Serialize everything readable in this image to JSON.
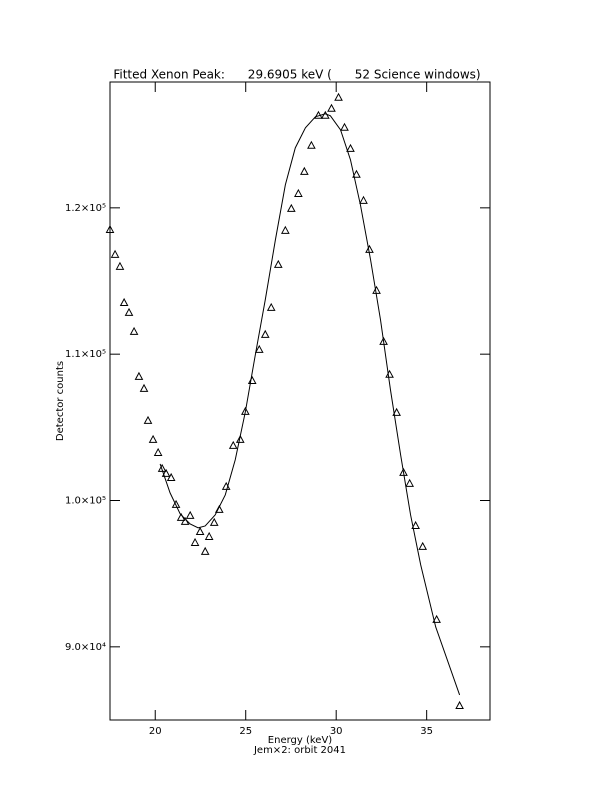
{
  "chart_data": {
    "type": "scatter",
    "title": "Fitted Xenon Peak:      29.6905 keV (      52 Science windows)",
    "x_label": "Energy (keV)",
    "subtitle": "Jem×2: orbit 2041",
    "y_label": "Detector counts",
    "xlim": [
      17.5,
      38.5
    ],
    "ylim": [
      85000,
      128600
    ],
    "xticks": [
      20,
      25,
      30,
      35
    ],
    "yticks": [
      {
        "value": 90000,
        "label": "9.0×10⁴"
      },
      {
        "value": 100000,
        "label": "1.0×10⁵"
      },
      {
        "value": 110000,
        "label": "1.1×10⁵"
      },
      {
        "value": 120000,
        "label": "1.2×10⁵"
      }
    ],
    "series": [
      {
        "type": "scatter",
        "marker": "triangle",
        "color": "#000000",
        "x": [
          17.5,
          17.78,
          18.05,
          18.28,
          18.55,
          18.83,
          19.1,
          19.38,
          19.6,
          19.88,
          20.16,
          20.38,
          20.6,
          20.88,
          21.15,
          21.43,
          21.65,
          21.93,
          22.2,
          22.48,
          22.76,
          22.98,
          23.26,
          23.54,
          23.92,
          24.31,
          24.7,
          24.98,
          25.36,
          25.75,
          26.08,
          26.41,
          26.8,
          27.19,
          27.52,
          27.91,
          28.24,
          28.63,
          29.02,
          29.4,
          29.74,
          30.13,
          30.46,
          30.79,
          31.12,
          31.51,
          31.84,
          32.23,
          32.62,
          32.95,
          33.34,
          33.72,
          34.06,
          34.39,
          34.78,
          35.55,
          36.82
        ],
        "values": [
          118490,
          116790,
          115970,
          113500,
          112820,
          111520,
          108450,
          107630,
          105440,
          104140,
          103250,
          102160,
          101820,
          101540,
          99700,
          98810,
          98540,
          98950,
          97100,
          97850,
          96490,
          97510,
          98470,
          99360,
          100930,
          103730,
          104140,
          106060,
          108170,
          110290,
          111320,
          113160,
          116100,
          118430,
          119930,
          120950,
          122460,
          124240,
          126290,
          126290,
          126770,
          127520,
          125470,
          124030,
          122260,
          120480,
          117130,
          114330,
          110840,
          108590,
          105990,
          101890,
          101140,
          98260,
          96830,
          91840,
          85960
        ]
      },
      {
        "type": "line",
        "color": "#000000",
        "x": [
          20.27,
          20.82,
          21.38,
          21.93,
          22.37,
          22.76,
          23.31,
          23.87,
          24.42,
          24.98,
          25.53,
          26.08,
          26.64,
          27.19,
          27.74,
          28.3,
          28.85,
          29.4,
          29.68,
          30.24,
          30.79,
          31.34,
          31.9,
          32.45,
          33.0,
          33.56,
          34.11,
          34.67,
          35.5,
          36.82
        ],
        "values": [
          102500,
          100520,
          99080,
          98400,
          98130,
          98260,
          99010,
          100380,
          102780,
          106060,
          109950,
          113710,
          117810,
          121570,
          124100,
          125470,
          126220,
          126430,
          126290,
          125330,
          123280,
          120200,
          116450,
          112340,
          107560,
          103120,
          99020,
          95600,
          91360,
          86710
        ]
      }
    ]
  }
}
